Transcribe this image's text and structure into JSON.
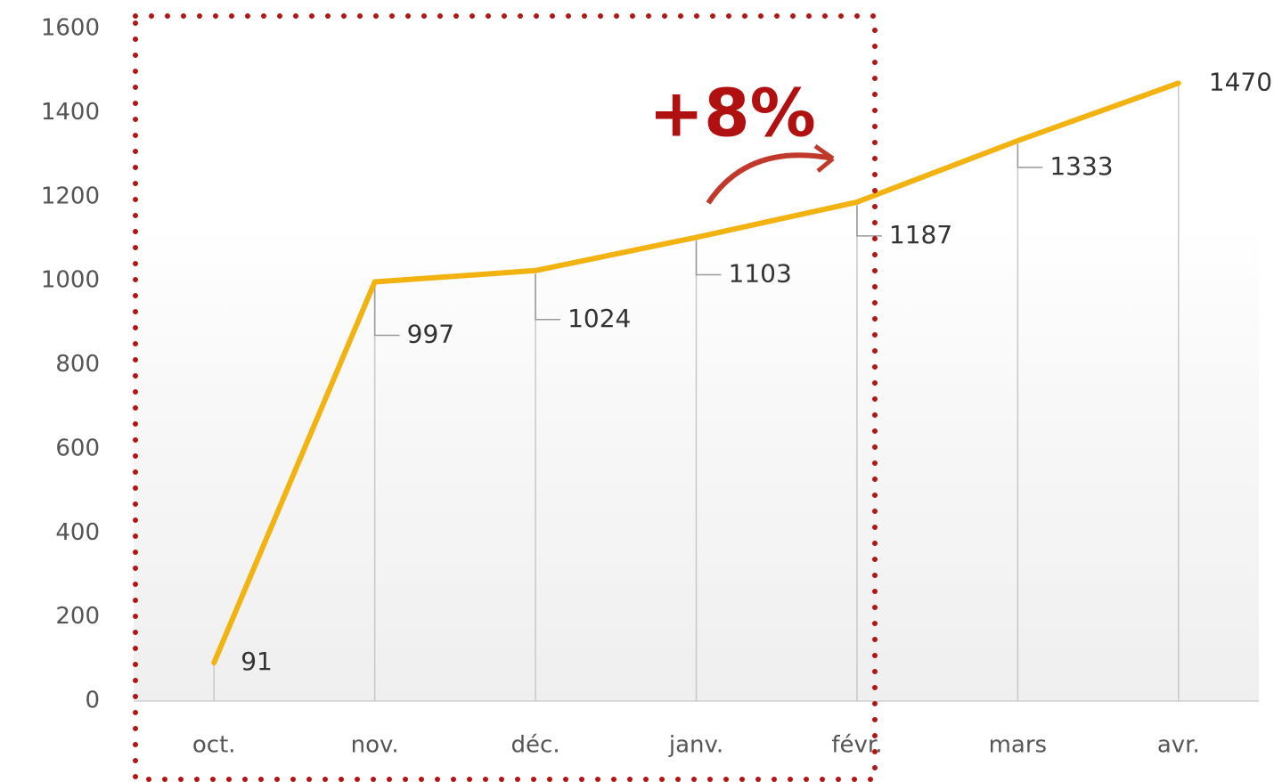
{
  "chart_data": {
    "type": "line",
    "categories": [
      "oct.",
      "nov.",
      "déc.",
      "janv.",
      "févr.",
      "mars",
      "avr."
    ],
    "values": [
      91,
      997,
      1024,
      1103,
      1187,
      1333,
      1470
    ],
    "color": "#f2b20f",
    "ylim": [
      0,
      1600
    ],
    "yticks": [
      0,
      200,
      400,
      600,
      800,
      1000,
      1200,
      1400,
      1600
    ],
    "annotation": "+8%"
  }
}
